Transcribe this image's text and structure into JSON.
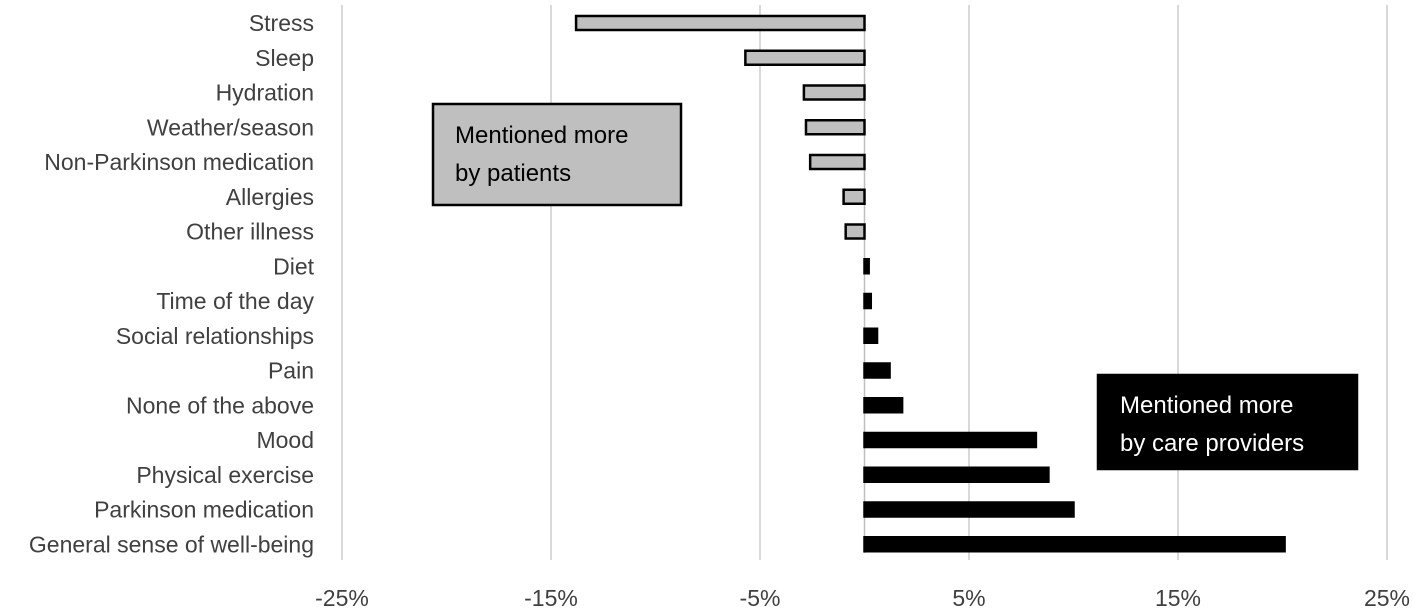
{
  "chart_data": {
    "type": "bar",
    "orientation": "horizontal",
    "categories": [
      "Stress",
      "Sleep",
      "Hydration",
      "Weather/season",
      "Non-Parkinson medication",
      "Allergies",
      "Other illness",
      "Diet",
      "Time of the day",
      "Social relationships",
      "Pain",
      "None of the above",
      "Mood",
      "Physical exercise",
      "Parkinson medication",
      "General sense of well-being"
    ],
    "values": [
      -13.8,
      -5.7,
      -2.9,
      -2.8,
      -2.6,
      -1.0,
      -0.9,
      0.2,
      0.3,
      0.6,
      1.2,
      1.8,
      8.2,
      8.8,
      10.0,
      20.1
    ],
    "xlim": [
      -25,
      25
    ],
    "xticks": [
      -25,
      -15,
      -5,
      5,
      15,
      25
    ],
    "xtick_labels": [
      "-25%",
      "-15%",
      "-5%",
      "5%",
      "15%",
      "25%"
    ],
    "grid": "vertical",
    "colors": {
      "negative": "#bfbfbf",
      "positive": "#000000",
      "grid": "#d9d9d9",
      "text": "#404040"
    },
    "annotations": [
      {
        "lines": [
          "Mentioned more",
          "by patients"
        ],
        "fill": "#bfbfbf",
        "text_color": "#000000",
        "border": "#000000"
      },
      {
        "lines": [
          "Mentioned more",
          "by care providers"
        ],
        "fill": "#000000",
        "text_color": "#ffffff",
        "border": "#000000"
      }
    ]
  }
}
